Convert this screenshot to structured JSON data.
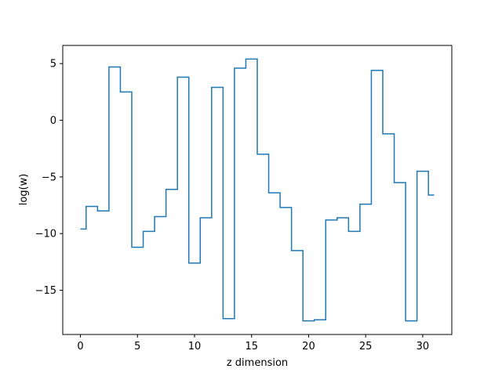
{
  "chart_data": {
    "type": "line",
    "drawstyle": "steps-mid",
    "title": "",
    "xlabel": "z dimension",
    "ylabel": "log(w)",
    "xlim": [
      -1.55,
      32.55
    ],
    "ylim": [
      -18.9,
      6.6
    ],
    "xticks": [
      0,
      5,
      10,
      15,
      20,
      25,
      30
    ],
    "yticks": [
      -15,
      -10,
      -5,
      0,
      5
    ],
    "grid": false,
    "series": [
      {
        "color": "#1f77b4",
        "x": [
          0,
          1,
          2,
          3,
          4,
          5,
          6,
          7,
          8,
          9,
          10,
          11,
          12,
          13,
          14,
          15,
          16,
          17,
          18,
          19,
          20,
          21,
          22,
          23,
          24,
          25,
          26,
          27,
          28,
          29,
          30,
          31
        ],
        "y": [
          -9.6,
          -7.6,
          -8.0,
          4.7,
          2.5,
          -11.2,
          -9.8,
          -8.5,
          -6.1,
          3.8,
          -12.6,
          -8.6,
          2.9,
          -17.5,
          4.6,
          5.4,
          -3.0,
          -6.4,
          -7.7,
          -11.5,
          -17.7,
          -17.6,
          -8.8,
          -8.6,
          -9.8,
          -7.4,
          4.4,
          -1.2,
          -5.5,
          -17.7,
          -4.5,
          -6.6
        ]
      }
    ]
  }
}
